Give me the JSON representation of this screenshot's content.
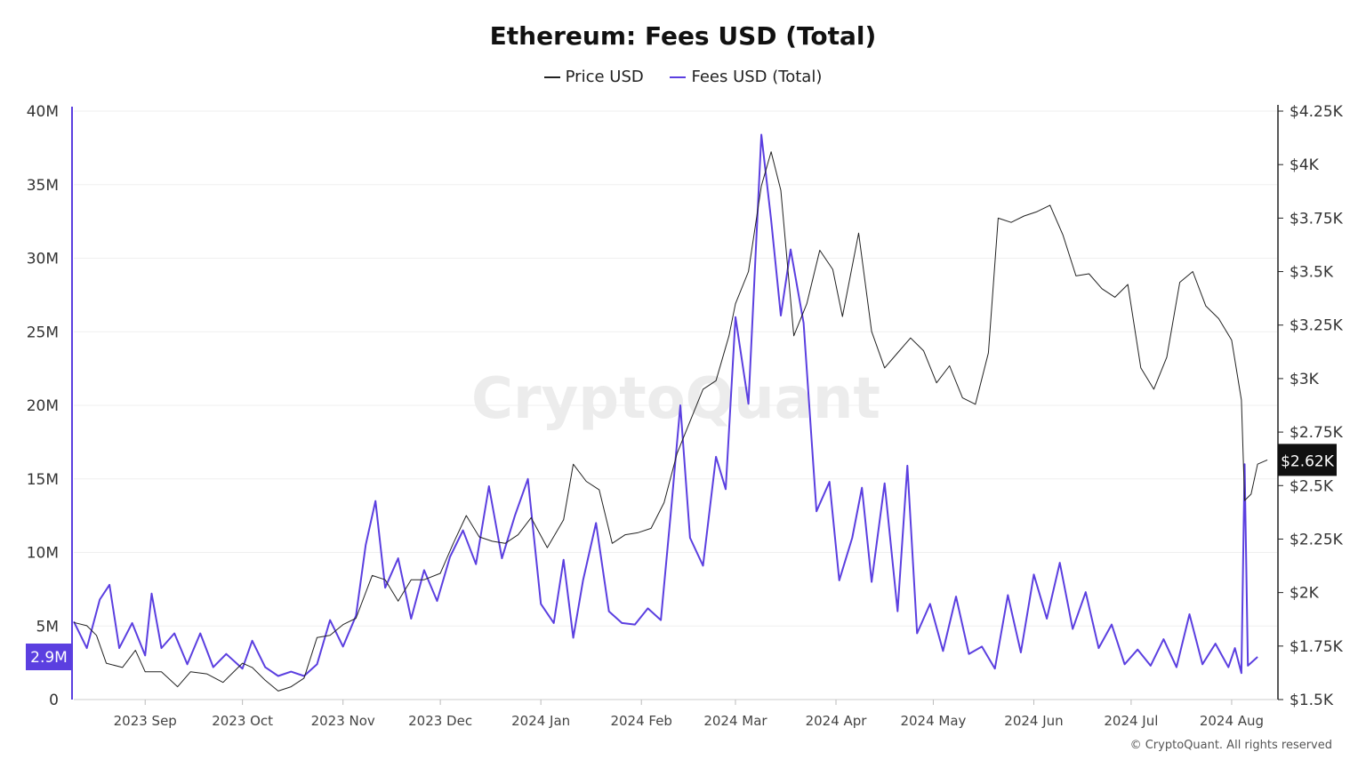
{
  "chart_data": {
    "type": "line",
    "title": "Ethereum: Fees USD (Total)",
    "watermark": "CryptoQuant",
    "copyright": "© CryptoQuant. All rights reserved",
    "legend_position": "top-center",
    "grid": true,
    "x_axis": {
      "type": "date",
      "range": [
        "2023-08-10",
        "2024-08-15"
      ],
      "ticks": [
        {
          "date": "2023-09-01",
          "label": "2023 Sep"
        },
        {
          "date": "2023-10-01",
          "label": "2023 Oct"
        },
        {
          "date": "2023-11-01",
          "label": "2023 Nov"
        },
        {
          "date": "2023-12-01",
          "label": "2023 Dec"
        },
        {
          "date": "2024-01-01",
          "label": "2024 Jan"
        },
        {
          "date": "2024-02-01",
          "label": "2024 Feb"
        },
        {
          "date": "2024-03-01",
          "label": "2024 Mar"
        },
        {
          "date": "2024-04-01",
          "label": "2024 Apr"
        },
        {
          "date": "2024-05-01",
          "label": "2024 May"
        },
        {
          "date": "2024-06-01",
          "label": "2024 Jun"
        },
        {
          "date": "2024-07-01",
          "label": "2024 Jul"
        },
        {
          "date": "2024-08-01",
          "label": "2024 Aug"
        }
      ]
    },
    "y_left": {
      "range": [
        0,
        40000000
      ],
      "ticks": [
        {
          "value": 0,
          "label": "0"
        },
        {
          "value": 5000000,
          "label": "5M"
        },
        {
          "value": 10000000,
          "label": "10M"
        },
        {
          "value": 15000000,
          "label": "15M"
        },
        {
          "value": 20000000,
          "label": "20M"
        },
        {
          "value": 25000000,
          "label": "25M"
        },
        {
          "value": 30000000,
          "label": "30M"
        },
        {
          "value": 35000000,
          "label": "35M"
        },
        {
          "value": 40000000,
          "label": "40M"
        }
      ],
      "current_label": "2.9M",
      "current_value": 2900000
    },
    "y_right": {
      "range": [
        1500,
        4250
      ],
      "ticks": [
        {
          "value": 1500,
          "label": "$1.5K"
        },
        {
          "value": 1750,
          "label": "$1.75K"
        },
        {
          "value": 2000,
          "label": "$2K"
        },
        {
          "value": 2250,
          "label": "$2.25K"
        },
        {
          "value": 2500,
          "label": "$2.5K"
        },
        {
          "value": 2750,
          "label": "$2.75K"
        },
        {
          "value": 3000,
          "label": "$3K"
        },
        {
          "value": 3250,
          "label": "$3.25K"
        },
        {
          "value": 3500,
          "label": "$3.5K"
        },
        {
          "value": 3750,
          "label": "$3.75K"
        },
        {
          "value": 4000,
          "label": "$4K"
        },
        {
          "value": 4250,
          "label": "$4.25K"
        }
      ],
      "current_label": "$2.62K",
      "current_value": 2620
    },
    "series": [
      {
        "name": "Price USD",
        "axis": "right",
        "color": "#222222",
        "points": [
          [
            "2023-08-10",
            1860
          ],
          [
            "2023-08-14",
            1845
          ],
          [
            "2023-08-17",
            1800
          ],
          [
            "2023-08-20",
            1670
          ],
          [
            "2023-08-25",
            1650
          ],
          [
            "2023-08-29",
            1730
          ],
          [
            "2023-09-01",
            1630
          ],
          [
            "2023-09-06",
            1630
          ],
          [
            "2023-09-11",
            1560
          ],
          [
            "2023-09-15",
            1630
          ],
          [
            "2023-09-20",
            1620
          ],
          [
            "2023-09-25",
            1580
          ],
          [
            "2023-10-01",
            1670
          ],
          [
            "2023-10-04",
            1650
          ],
          [
            "2023-10-08",
            1590
          ],
          [
            "2023-10-12",
            1540
          ],
          [
            "2023-10-16",
            1560
          ],
          [
            "2023-10-20",
            1600
          ],
          [
            "2023-10-24",
            1790
          ],
          [
            "2023-10-28",
            1800
          ],
          [
            "2023-11-01",
            1850
          ],
          [
            "2023-11-05",
            1880
          ],
          [
            "2023-11-10",
            2080
          ],
          [
            "2023-11-14",
            2060
          ],
          [
            "2023-11-18",
            1960
          ],
          [
            "2023-11-22",
            2060
          ],
          [
            "2023-11-26",
            2060
          ],
          [
            "2023-12-01",
            2090
          ],
          [
            "2023-12-05",
            2230
          ],
          [
            "2023-12-09",
            2360
          ],
          [
            "2023-12-13",
            2260
          ],
          [
            "2023-12-17",
            2240
          ],
          [
            "2023-12-21",
            2230
          ],
          [
            "2023-12-25",
            2270
          ],
          [
            "2023-12-29",
            2350
          ],
          [
            "2024-01-03",
            2210
          ],
          [
            "2024-01-08",
            2340
          ],
          [
            "2024-01-11",
            2600
          ],
          [
            "2024-01-15",
            2520
          ],
          [
            "2024-01-19",
            2480
          ],
          [
            "2024-01-23",
            2230
          ],
          [
            "2024-01-27",
            2270
          ],
          [
            "2024-01-31",
            2280
          ],
          [
            "2024-02-04",
            2300
          ],
          [
            "2024-02-08",
            2420
          ],
          [
            "2024-02-12",
            2650
          ],
          [
            "2024-02-16",
            2800
          ],
          [
            "2024-02-20",
            2950
          ],
          [
            "2024-02-24",
            2990
          ],
          [
            "2024-02-28",
            3200
          ],
          [
            "2024-03-01",
            3350
          ],
          [
            "2024-03-05",
            3500
          ],
          [
            "2024-03-09",
            3900
          ],
          [
            "2024-03-12",
            4060
          ],
          [
            "2024-03-15",
            3880
          ],
          [
            "2024-03-19",
            3200
          ],
          [
            "2024-03-23",
            3350
          ],
          [
            "2024-03-27",
            3600
          ],
          [
            "2024-03-31",
            3510
          ],
          [
            "2024-04-03",
            3290
          ],
          [
            "2024-04-08",
            3680
          ],
          [
            "2024-04-12",
            3220
          ],
          [
            "2024-04-16",
            3050
          ],
          [
            "2024-04-20",
            3120
          ],
          [
            "2024-04-24",
            3190
          ],
          [
            "2024-04-28",
            3130
          ],
          [
            "2024-05-02",
            2980
          ],
          [
            "2024-05-06",
            3060
          ],
          [
            "2024-05-10",
            2910
          ],
          [
            "2024-05-14",
            2880
          ],
          [
            "2024-05-18",
            3120
          ],
          [
            "2024-05-21",
            3750
          ],
          [
            "2024-05-25",
            3730
          ],
          [
            "2024-05-29",
            3760
          ],
          [
            "2024-06-02",
            3780
          ],
          [
            "2024-06-06",
            3810
          ],
          [
            "2024-06-10",
            3670
          ],
          [
            "2024-06-14",
            3480
          ],
          [
            "2024-06-18",
            3490
          ],
          [
            "2024-06-22",
            3420
          ],
          [
            "2024-06-26",
            3380
          ],
          [
            "2024-06-30",
            3440
          ],
          [
            "2024-07-04",
            3050
          ],
          [
            "2024-07-08",
            2950
          ],
          [
            "2024-07-12",
            3100
          ],
          [
            "2024-07-16",
            3450
          ],
          [
            "2024-07-20",
            3500
          ],
          [
            "2024-07-24",
            3340
          ],
          [
            "2024-07-28",
            3280
          ],
          [
            "2024-08-01",
            3180
          ],
          [
            "2024-08-04",
            2900
          ],
          [
            "2024-08-05",
            2430
          ],
          [
            "2024-08-07",
            2460
          ],
          [
            "2024-08-09",
            2600
          ],
          [
            "2024-08-12",
            2620
          ]
        ]
      },
      {
        "name": "Fees USD (Total)",
        "axis": "left",
        "color": "#5b3fe0",
        "points": [
          [
            "2023-08-10",
            5300000
          ],
          [
            "2023-08-14",
            3500000
          ],
          [
            "2023-08-18",
            6800000
          ],
          [
            "2023-08-21",
            7800000
          ],
          [
            "2023-08-24",
            3500000
          ],
          [
            "2023-08-28",
            5200000
          ],
          [
            "2023-09-01",
            3000000
          ],
          [
            "2023-09-03",
            7200000
          ],
          [
            "2023-09-06",
            3500000
          ],
          [
            "2023-09-10",
            4500000
          ],
          [
            "2023-09-14",
            2400000
          ],
          [
            "2023-09-18",
            4500000
          ],
          [
            "2023-09-22",
            2200000
          ],
          [
            "2023-09-26",
            3100000
          ],
          [
            "2023-10-01",
            2100000
          ],
          [
            "2023-10-04",
            4000000
          ],
          [
            "2023-10-08",
            2200000
          ],
          [
            "2023-10-12",
            1600000
          ],
          [
            "2023-10-16",
            1900000
          ],
          [
            "2023-10-20",
            1600000
          ],
          [
            "2023-10-24",
            2400000
          ],
          [
            "2023-10-28",
            5400000
          ],
          [
            "2023-11-01",
            3600000
          ],
          [
            "2023-11-05",
            5700000
          ],
          [
            "2023-11-08",
            10500000
          ],
          [
            "2023-11-11",
            13500000
          ],
          [
            "2023-11-14",
            7600000
          ],
          [
            "2023-11-18",
            9600000
          ],
          [
            "2023-11-22",
            5500000
          ],
          [
            "2023-11-26",
            8800000
          ],
          [
            "2023-11-30",
            6700000
          ],
          [
            "2023-12-04",
            9700000
          ],
          [
            "2023-12-08",
            11500000
          ],
          [
            "2023-12-12",
            9200000
          ],
          [
            "2023-12-16",
            14500000
          ],
          [
            "2023-12-20",
            9600000
          ],
          [
            "2023-12-24",
            12500000
          ],
          [
            "2023-12-28",
            15000000
          ],
          [
            "2024-01-01",
            6500000
          ],
          [
            "2024-01-05",
            5200000
          ],
          [
            "2024-01-08",
            9500000
          ],
          [
            "2024-01-11",
            4200000
          ],
          [
            "2024-01-14",
            8100000
          ],
          [
            "2024-01-18",
            12000000
          ],
          [
            "2024-01-22",
            6000000
          ],
          [
            "2024-01-26",
            5200000
          ],
          [
            "2024-01-30",
            5100000
          ],
          [
            "2024-02-03",
            6200000
          ],
          [
            "2024-02-07",
            5400000
          ],
          [
            "2024-02-10",
            12500000
          ],
          [
            "2024-02-13",
            20000000
          ],
          [
            "2024-02-16",
            11000000
          ],
          [
            "2024-02-20",
            9100000
          ],
          [
            "2024-02-24",
            16500000
          ],
          [
            "2024-02-27",
            14300000
          ],
          [
            "2024-03-01",
            26000000
          ],
          [
            "2024-03-05",
            20100000
          ],
          [
            "2024-03-09",
            38400000
          ],
          [
            "2024-03-12",
            32600000
          ],
          [
            "2024-03-15",
            26100000
          ],
          [
            "2024-03-18",
            30600000
          ],
          [
            "2024-03-22",
            25600000
          ],
          [
            "2024-03-26",
            12800000
          ],
          [
            "2024-03-30",
            14800000
          ],
          [
            "2024-04-02",
            8100000
          ],
          [
            "2024-04-06",
            11000000
          ],
          [
            "2024-04-09",
            14400000
          ],
          [
            "2024-04-12",
            8000000
          ],
          [
            "2024-04-16",
            14700000
          ],
          [
            "2024-04-20",
            6000000
          ],
          [
            "2024-04-23",
            15900000
          ],
          [
            "2024-04-26",
            4500000
          ],
          [
            "2024-04-30",
            6500000
          ],
          [
            "2024-05-04",
            3300000
          ],
          [
            "2024-05-08",
            7000000
          ],
          [
            "2024-05-12",
            3100000
          ],
          [
            "2024-05-16",
            3600000
          ],
          [
            "2024-05-20",
            2100000
          ],
          [
            "2024-05-24",
            7100000
          ],
          [
            "2024-05-28",
            3200000
          ],
          [
            "2024-06-01",
            8500000
          ],
          [
            "2024-06-05",
            5500000
          ],
          [
            "2024-06-09",
            9300000
          ],
          [
            "2024-06-13",
            4800000
          ],
          [
            "2024-06-17",
            7300000
          ],
          [
            "2024-06-21",
            3500000
          ],
          [
            "2024-06-25",
            5100000
          ],
          [
            "2024-06-29",
            2400000
          ],
          [
            "2024-07-03",
            3400000
          ],
          [
            "2024-07-07",
            2300000
          ],
          [
            "2024-07-11",
            4100000
          ],
          [
            "2024-07-15",
            2200000
          ],
          [
            "2024-07-19",
            5800000
          ],
          [
            "2024-07-23",
            2400000
          ],
          [
            "2024-07-27",
            3800000
          ],
          [
            "2024-07-31",
            2200000
          ],
          [
            "2024-08-02",
            3500000
          ],
          [
            "2024-08-04",
            1800000
          ],
          [
            "2024-08-05",
            16000000
          ],
          [
            "2024-08-06",
            2300000
          ],
          [
            "2024-08-09",
            2900000
          ]
        ]
      }
    ]
  }
}
